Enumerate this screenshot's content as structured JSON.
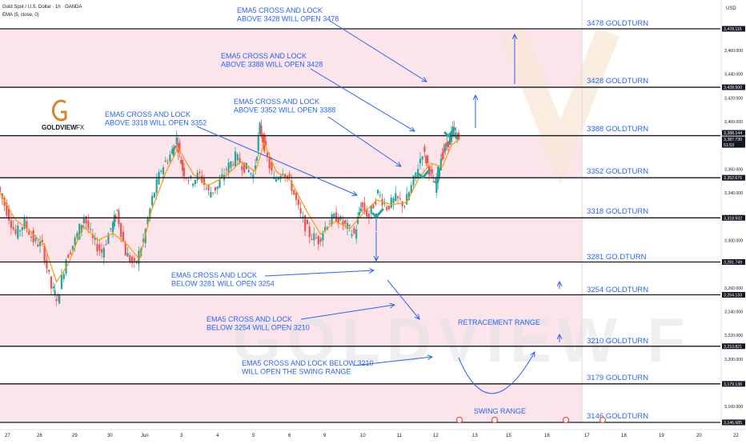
{
  "header": {
    "symbol": "Gold Spot / U.S. Dollar · 1h · OANDA",
    "indicator": "EMA (5, close, 0)"
  },
  "logo": {
    "brand": "GOLDVIEW",
    "suffix": "FX"
  },
  "watermark": "GOLDVIEW F",
  "price_axis": {
    "currency": "USD",
    "ticks": [
      "3,460.000",
      "3,440.000",
      "3,420.000",
      "3,400.000",
      "3,360.000",
      "3,340.000",
      "3,320.000",
      "3,300.000",
      "3,260.000",
      "3,240.000",
      "3,220.000",
      "3,200.000",
      "3,160.000"
    ],
    "badges": [
      "3,478.115",
      "3,428.900",
      "3,388.144",
      "3,387.730",
      "51:53",
      "3,352.676",
      "3,318.932",
      "3,281.749",
      "3,254.133",
      "3,210.821",
      "3,179.136",
      "3,146.685"
    ]
  },
  "time_axis": {
    "labels": [
      "27",
      "28",
      "29",
      "30",
      "Jun",
      "3",
      "4",
      "5",
      "6",
      "9",
      "10",
      "11",
      "12",
      "13",
      "15",
      "16",
      "17",
      "18",
      "19",
      "20",
      "22"
    ]
  },
  "levels": [
    {
      "label": "3478 GOLDTURN"
    },
    {
      "label": "3428 GOLDTURN"
    },
    {
      "label": "3388 GOLDTURN"
    },
    {
      "label": "3352 GOLDTURN"
    },
    {
      "label": "3318 GOLDTURN"
    },
    {
      "label": "3281 GO.DTURN"
    },
    {
      "label": "3254 GOLDTURN"
    },
    {
      "label": "3210 GOLDTURN"
    },
    {
      "label": "3179 GOLDTURN"
    },
    {
      "label": "3146 GOLDTURN"
    }
  ],
  "annotations": [
    {
      "lines": [
        "EMA5 CROSS AND LOCK",
        "ABOVE 3428 WILL OPEN 3478"
      ]
    },
    {
      "lines": [
        "EMA5 CROSS AND LOCK",
        "ABOVE 3388 WILL OPEN 3428"
      ]
    },
    {
      "lines": [
        "EMA5 CROSS AND LOCK",
        "ABOVE 3352 WILL OPEN 3388"
      ]
    },
    {
      "lines": [
        "EMA5 CROSS AND LOCK",
        "ABOVE 3318 WILL OPEN 3352"
      ]
    },
    {
      "lines": [
        "EMA5 CROSS AND LOCK",
        "BELOW 3281 WILL OPEN 3254"
      ]
    },
    {
      "lines": [
        "EMA5 CROSS AND LOCK",
        "BELOW 3254 WILL OPEN 3210"
      ]
    },
    {
      "lines": [
        "EMA5 CROSS AND LOCK BELOW 3210",
        "WILL OPEN THE SWING RANGE"
      ]
    },
    {
      "lines": [
        "RETRACEMENT RANGE"
      ]
    },
    {
      "lines": [
        "SWING RANGE"
      ]
    }
  ],
  "colors": {
    "band": "#fbe4ea",
    "level_line": "#131722",
    "annotation": "#2962ff",
    "candle_up": "#26a69a",
    "candle_down": "#ef5350",
    "ema": "#ff9800",
    "check": "#26a69a",
    "logo": "#d4882b",
    "badge_bg": "#131722",
    "badge_text": "#ffffff"
  },
  "chart_data": {
    "type": "candlestick",
    "title": "Gold Spot / U.S. Dollar · 1h · OANDA",
    "currency": "USD",
    "ylim": [
      3140,
      3492
    ],
    "price_series": [
      [
        27.0,
        3345
      ],
      [
        27.3,
        3325
      ],
      [
        27.6,
        3305
      ],
      [
        27.9,
        3315
      ],
      [
        28.2,
        3300
      ],
      [
        28.5,
        3295
      ],
      [
        28.8,
        3260
      ],
      [
        29.0,
        3250
      ],
      [
        29.3,
        3285
      ],
      [
        29.6,
        3300
      ],
      [
        29.9,
        3320
      ],
      [
        30.2,
        3300
      ],
      [
        30.5,
        3290
      ],
      [
        30.8,
        3310
      ],
      [
        31.0,
        3325
      ],
      [
        31.3,
        3290
      ],
      [
        31.6,
        3278
      ],
      [
        31.9,
        3300
      ],
      [
        32.2,
        3335
      ],
      [
        32.5,
        3360
      ],
      [
        32.8,
        3372
      ],
      [
        33.0,
        3385
      ],
      [
        33.2,
        3360
      ],
      [
        33.5,
        3350
      ],
      [
        33.8,
        3355
      ],
      [
        34.1,
        3340
      ],
      [
        34.4,
        3345
      ],
      [
        34.7,
        3360
      ],
      [
        35.0,
        3370
      ],
      [
        35.3,
        3362
      ],
      [
        35.6,
        3355
      ],
      [
        35.8,
        3395
      ],
      [
        36.0,
        3375
      ],
      [
        36.3,
        3350
      ],
      [
        36.6,
        3360
      ],
      [
        36.9,
        3345
      ],
      [
        37.2,
        3320
      ],
      [
        37.5,
        3305
      ],
      [
        37.8,
        3300
      ],
      [
        38.1,
        3315
      ],
      [
        38.4,
        3320
      ],
      [
        38.7,
        3312
      ],
      [
        39.0,
        3305
      ],
      [
        39.2,
        3330
      ],
      [
        39.5,
        3320
      ],
      [
        39.8,
        3340
      ],
      [
        40.1,
        3328
      ],
      [
        40.4,
        3335
      ],
      [
        40.7,
        3330
      ],
      [
        41.0,
        3350
      ],
      [
        41.3,
        3375
      ],
      [
        41.5,
        3360
      ],
      [
        41.7,
        3345
      ],
      [
        41.9,
        3370
      ],
      [
        42.1,
        3380
      ],
      [
        42.3,
        3392
      ],
      [
        42.5,
        3385
      ]
    ],
    "ema5_series": [
      [
        27.0,
        3340
      ],
      [
        27.5,
        3318
      ],
      [
        28.0,
        3308
      ],
      [
        28.5,
        3296
      ],
      [
        28.9,
        3265
      ],
      [
        29.3,
        3280
      ],
      [
        29.8,
        3312
      ],
      [
        30.3,
        3300
      ],
      [
        30.8,
        3306
      ],
      [
        31.3,
        3296
      ],
      [
        31.7,
        3284
      ],
      [
        32.1,
        3325
      ],
      [
        32.6,
        3358
      ],
      [
        33.0,
        3378
      ],
      [
        33.5,
        3356
      ],
      [
        34.0,
        3346
      ],
      [
        34.6,
        3354
      ],
      [
        35.1,
        3366
      ],
      [
        35.6,
        3358
      ],
      [
        35.9,
        3382
      ],
      [
        36.3,
        3358
      ],
      [
        36.8,
        3350
      ],
      [
        37.3,
        3326
      ],
      [
        37.8,
        3305
      ],
      [
        38.3,
        3316
      ],
      [
        38.8,
        3310
      ],
      [
        39.2,
        3322
      ],
      [
        39.7,
        3334
      ],
      [
        40.2,
        3330
      ],
      [
        40.7,
        3332
      ],
      [
        41.1,
        3352
      ],
      [
        41.5,
        3365
      ],
      [
        41.9,
        3362
      ],
      [
        42.2,
        3380
      ],
      [
        42.5,
        3386
      ]
    ],
    "levels": [
      3478.115,
      3428.9,
      3388.144,
      3352.676,
      3318.932,
      3281.749,
      3254.133,
      3210.821,
      3179.136,
      3146.685
    ]
  }
}
